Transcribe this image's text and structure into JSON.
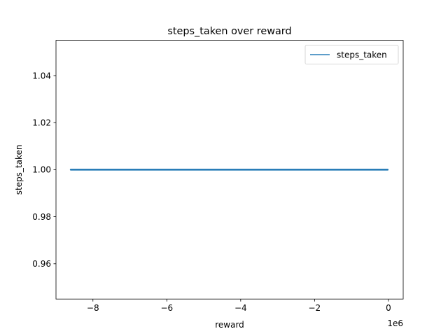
{
  "chart_data": {
    "type": "line",
    "title": "steps_taken over reward",
    "xlabel": "reward",
    "ylabel": "steps_taken",
    "x_offset_text": "1e6",
    "xlim": [
      -9.0,
      0.4
    ],
    "ylim": [
      0.945,
      1.055
    ],
    "x_ticks": [
      {
        "value": -8,
        "label": "−8"
      },
      {
        "value": -6,
        "label": "−6"
      },
      {
        "value": -4,
        "label": "−4"
      },
      {
        "value": -2,
        "label": "−2"
      },
      {
        "value": 0,
        "label": "0"
      }
    ],
    "y_ticks": [
      {
        "value": 0.96,
        "label": "0.96"
      },
      {
        "value": 0.98,
        "label": "0.98"
      },
      {
        "value": 1.0,
        "label": "1.00"
      },
      {
        "value": 1.02,
        "label": "1.02"
      },
      {
        "value": 1.04,
        "label": "1.04"
      }
    ],
    "grid": false,
    "legend": "top-right",
    "series": [
      {
        "name": "steps_taken",
        "color": "#1f77b4",
        "x": [
          -8.6,
          -7.0,
          -5.0,
          -3.0,
          -1.0,
          -0.02
        ],
        "y": [
          1.0,
          1.0,
          1.0,
          1.0,
          1.0,
          1.0
        ]
      }
    ]
  }
}
